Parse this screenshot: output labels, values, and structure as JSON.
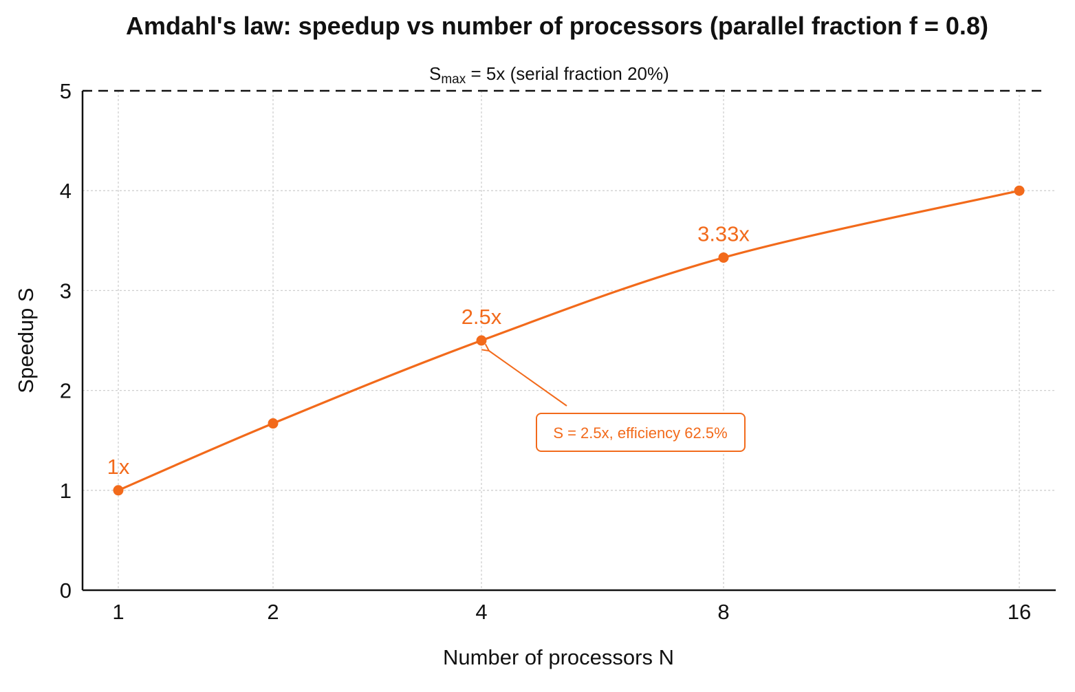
{
  "chart_data": {
    "type": "line",
    "title": "Amdahl's law: speedup vs number of processors (parallel fraction f = 0.8)",
    "xlabel": "Number of processors N",
    "ylabel": "Speedup S",
    "x_scale": "log2",
    "x_ticks": [
      "1",
      "2",
      "4",
      "8",
      "16"
    ],
    "y_ticks": [
      "0",
      "1",
      "2",
      "3",
      "4",
      "5"
    ],
    "xlim": [
      1,
      16
    ],
    "ylim": [
      0,
      5
    ],
    "grid": true,
    "series": [
      {
        "x": [
          1,
          2,
          4,
          8,
          16
        ],
        "y": [
          1.0,
          1.67,
          2.5,
          3.33,
          4.0
        ],
        "color": "#f26a1b"
      }
    ],
    "data_labels": [
      {
        "x": 1,
        "y": 1.0,
        "text": "1x"
      },
      {
        "x": 4,
        "y": 2.5,
        "text": "2.5x"
      },
      {
        "x": 8,
        "y": 3.33,
        "text": "3.33x"
      }
    ],
    "reference_line": {
      "y": 5,
      "style": "dashed",
      "label_main": "S",
      "label_sub": "max",
      "label_rest": " = 5x (serial fraction 20%)"
    },
    "callout": {
      "text": "S = 2.5x, efficiency 62.5%",
      "target_x": 4,
      "target_y": 2.5
    }
  }
}
